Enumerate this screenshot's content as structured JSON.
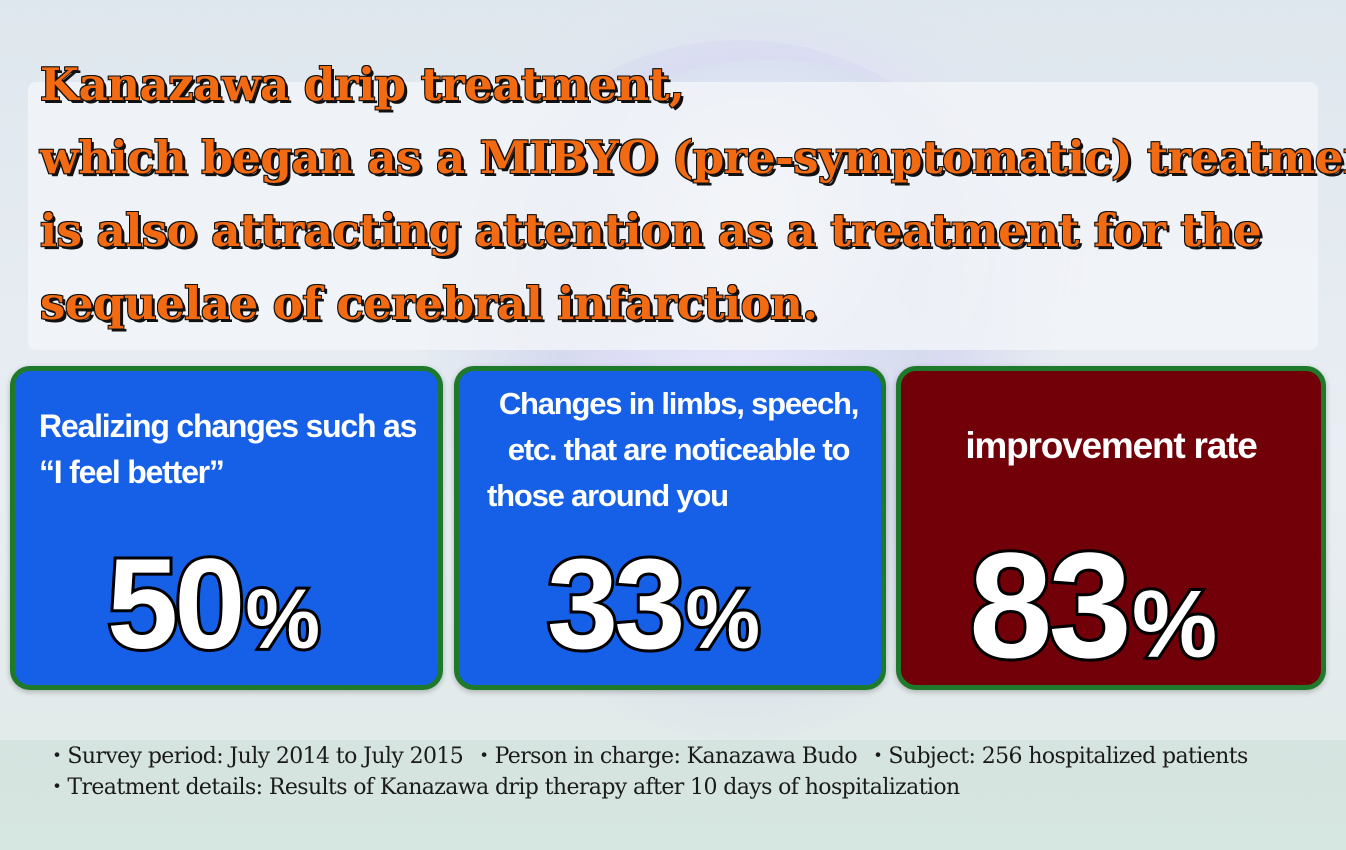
{
  "headline": {
    "lines": [
      "Kanazawa drip treatment,",
      "which began as a MIBYO (pre-symptomatic) treatment,",
      "is also attracting attention as a treatment for the",
      "sequelae of cerebral infarction."
    ]
  },
  "stats": [
    {
      "label_lines": [
        "Realizing changes such as",
        "“I feel better”"
      ],
      "value": "50",
      "unit": "%",
      "color": "#1560e6"
    },
    {
      "label_lines": [
        "Changes in limbs, speech,",
        "etc. that are noticeable to",
        "those around you"
      ],
      "value": "33",
      "unit": "%",
      "color": "#1560e6"
    },
    {
      "label_lines": [
        "improvement rate"
      ],
      "value": "83",
      "unit": "%",
      "color": "#720008"
    }
  ],
  "notes": {
    "row1": [
      "・Survey period: July 2014 to July 2015",
      "・Person in charge: Kanazawa Budo",
      "・Subject: 256 hospitalized patients"
    ],
    "row2": [
      "・Treatment details: Results of Kanazawa drip therapy after 10 days of hospitalization"
    ]
  },
  "colors": {
    "headline": "#f26a12",
    "card_border": "#1e7a2a"
  }
}
